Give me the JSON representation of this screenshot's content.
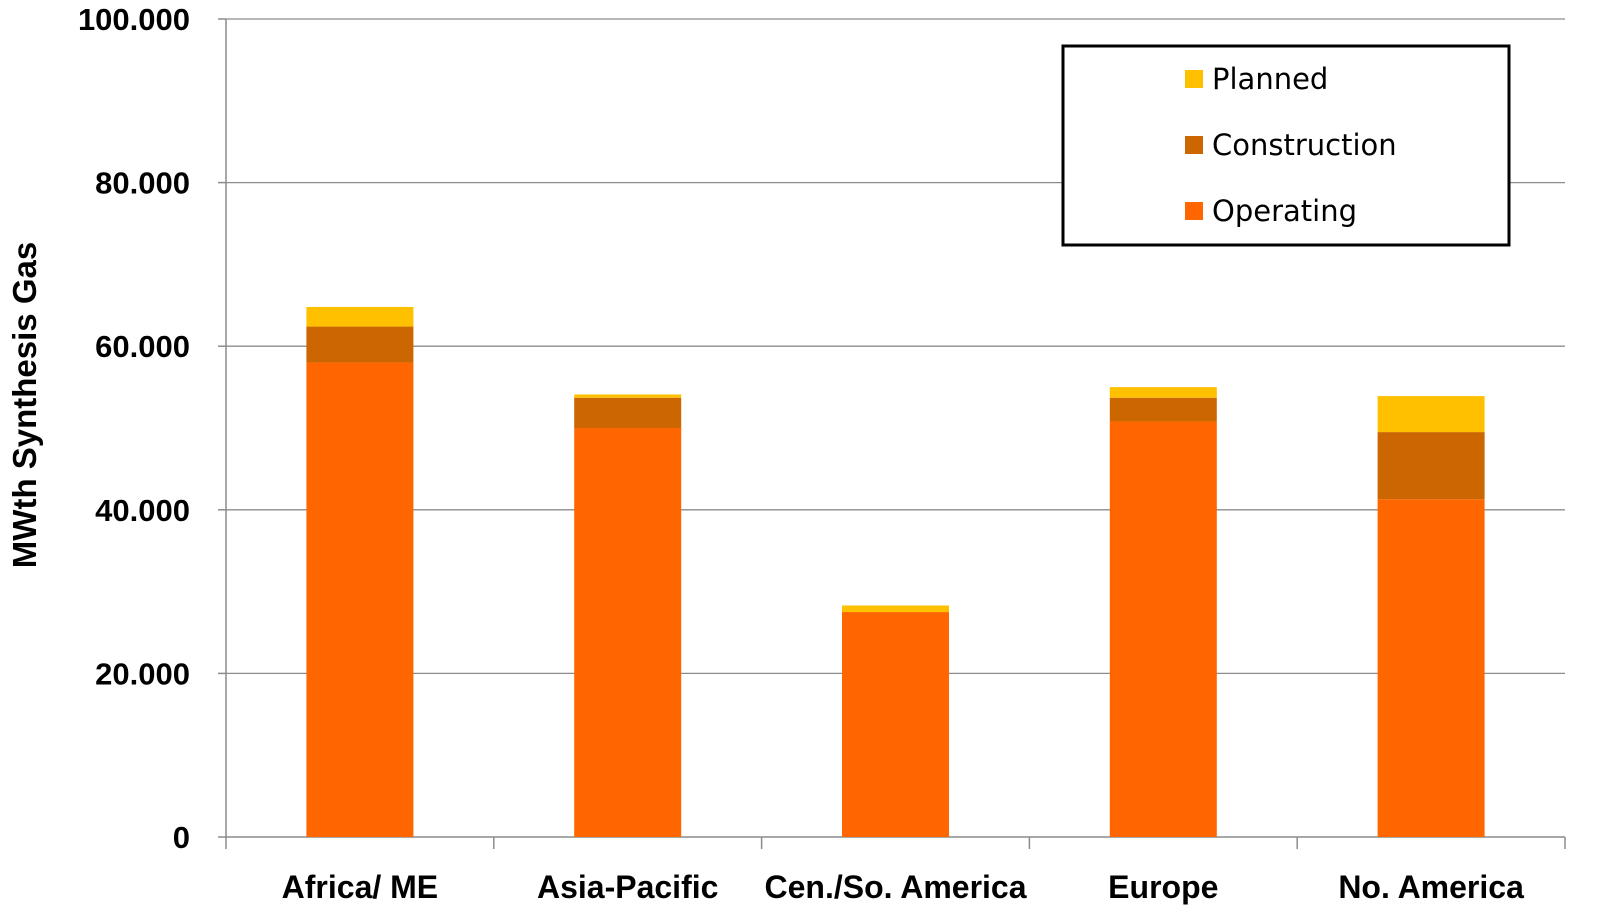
{
  "chart_data": {
    "type": "bar",
    "stacked": true,
    "categories": [
      "Africa/ ME",
      "Asia-Pacific",
      "Cen./So. America",
      "Europe",
      "No. America"
    ],
    "series": [
      {
        "name": "Operating",
        "color": "#FF6600",
        "values": [
          58000,
          50000,
          27500,
          50800,
          41300
        ]
      },
      {
        "name": "Construction",
        "color": "#CC6600",
        "values": [
          4400,
          3700,
          0,
          2900,
          8200
        ]
      },
      {
        "name": "Planned",
        "color": "#FFC000",
        "values": [
          2400,
          400,
          800,
          1300,
          4400
        ]
      }
    ],
    "title": "",
    "xlabel": "",
    "ylabel": "MWth Synthesis Gas",
    "ylim": [
      0,
      100000
    ],
    "yticks": [
      0,
      20000,
      40000,
      60000,
      80000,
      100000
    ],
    "ytick_labels": [
      "0",
      "20.000",
      "40.000",
      "60.000",
      "80.000",
      "100.000"
    ],
    "grid": true,
    "legend": {
      "position": "top-right",
      "order": [
        "Planned",
        "Construction",
        "Operating"
      ]
    }
  }
}
